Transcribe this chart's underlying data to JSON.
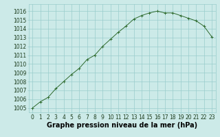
{
  "x": [
    0,
    1,
    2,
    3,
    4,
    5,
    6,
    7,
    8,
    9,
    10,
    11,
    12,
    13,
    14,
    15,
    16,
    17,
    18,
    19,
    20,
    21,
    22,
    23
  ],
  "y": [
    1005.0,
    1005.7,
    1006.2,
    1007.2,
    1008.0,
    1008.8,
    1009.5,
    1010.5,
    1011.0,
    1012.0,
    1012.8,
    1013.6,
    1014.3,
    1015.1,
    1015.5,
    1015.8,
    1016.0,
    1015.8,
    1015.8,
    1015.5,
    1015.2,
    1014.9,
    1014.3,
    1013.1
  ],
  "x_ticks": [
    0,
    1,
    2,
    3,
    4,
    5,
    6,
    7,
    8,
    9,
    10,
    11,
    12,
    13,
    14,
    15,
    16,
    17,
    18,
    19,
    20,
    21,
    22,
    23
  ],
  "y_ticks": [
    1005,
    1006,
    1007,
    1008,
    1009,
    1010,
    1011,
    1012,
    1013,
    1014,
    1015,
    1016
  ],
  "ylim": [
    1004.5,
    1016.8
  ],
  "xlim": [
    -0.5,
    23.5
  ],
  "line_color": "#2d6a2d",
  "marker": "+",
  "marker_color": "#2d6a2d",
  "bg_color": "#cceae8",
  "grid_color": "#99cccc",
  "xlabel": "Graphe pression niveau de la mer (hPa)",
  "xlabel_fontsize": 7,
  "tick_fontsize": 5.5,
  "title": ""
}
